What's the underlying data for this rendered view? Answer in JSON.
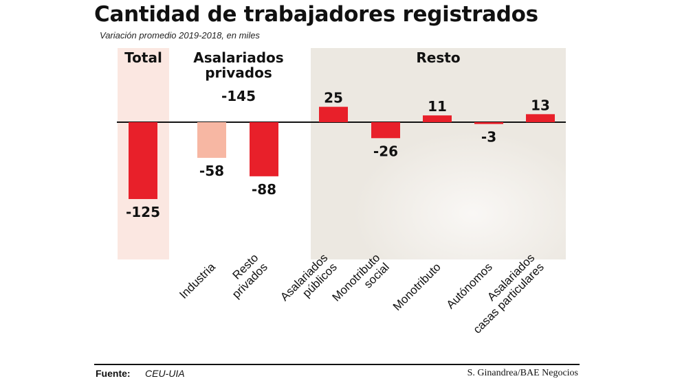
{
  "header": {
    "title": "Cantidad de trabajadores registrados",
    "subtitle": "Variación promedio 2019-2018, en miles"
  },
  "groups": {
    "total": "Total",
    "asalariados_privados": "Asalariados privados",
    "asalariados_privados_value": "-145",
    "resto": "Resto"
  },
  "chart_data": {
    "type": "bar",
    "title": "Cantidad de trabajadores registrados",
    "subtitle": "Variación promedio 2019-2018, en miles",
    "categories": [
      "Total",
      "Industria",
      "Resto privados",
      "Asalariados públicos",
      "Monotributo social",
      "Monotributo",
      "Autónomos",
      "Asalariados casas particulares"
    ],
    "category_label_lines": [
      [],
      [
        "Industria"
      ],
      [
        "Resto",
        "privados"
      ],
      [
        "Asalariados",
        "públicos"
      ],
      [
        "Monotributo",
        "social"
      ],
      [
        "Monotributo"
      ],
      [
        "Autónomos"
      ],
      [
        "Asalariados",
        "casas particulares"
      ]
    ],
    "values": [
      -125,
      -58,
      -88,
      25,
      -26,
      11,
      -3,
      13
    ],
    "data_labels": [
      "-125",
      "-58",
      "-88",
      "25",
      "-26",
      "11",
      "-3",
      "13"
    ],
    "bar_colors": [
      "#e8202a",
      "#f7b7a3",
      "#e8202a",
      "#e8202a",
      "#e8202a",
      "#e8202a",
      "#e8202a",
      "#e8202a"
    ],
    "value_label_colors": [
      "#111111",
      "#111111",
      "#111111",
      "#111111",
      "#111111",
      "#111111",
      "#111111",
      "#111111"
    ],
    "xlabel": "",
    "ylabel": "",
    "ylim": [
      -140,
      35
    ],
    "grid": false,
    "colors": {
      "primary": "#e8202a",
      "industria": "#f7b7a3",
      "highlight": "#e8202a",
      "total_panel": "#fbe7e1",
      "resto_panel": "#ece8e1"
    }
  },
  "footer": {
    "source_label": "Fuente:",
    "source": "CEU-UIA",
    "credit": "S. Ginandrea/BAE Negocios"
  }
}
